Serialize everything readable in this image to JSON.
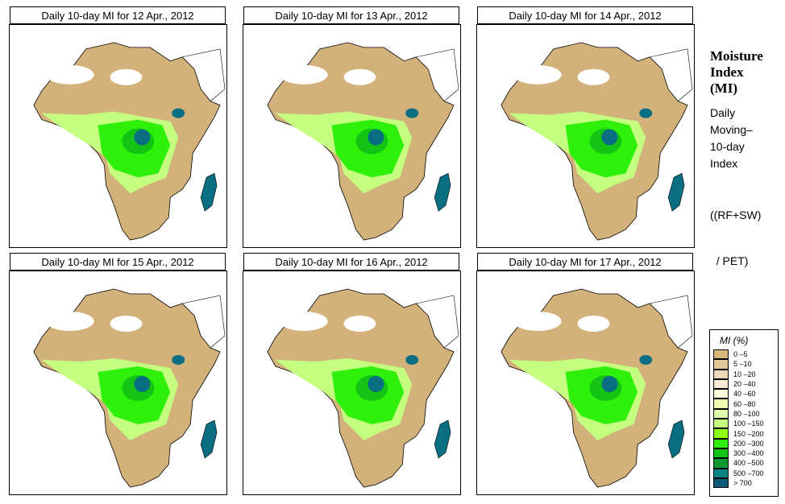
{
  "panels": [
    {
      "title": "Daily 10-day MI for  12 Apr., 2012",
      "date": "12 Apr., 2012"
    },
    {
      "title": "Daily 10-day MI for  13 Apr., 2012",
      "date": "13 Apr., 2012"
    },
    {
      "title": "Daily 10-day MI for  14 Apr., 2012",
      "date": "14 Apr., 2012"
    },
    {
      "title": "Daily 10-day MI for  15 Apr., 2012",
      "date": "15 Apr., 2012"
    },
    {
      "title": "Daily 10-day MI for  16 Apr., 2012",
      "date": "16 Apr., 2012"
    },
    {
      "title": "Daily 10-day MI for  17 Apr., 2012",
      "date": "17 Apr., 2012"
    }
  ],
  "side": {
    "title_lines": [
      "Moisture",
      "Index",
      "(MI)"
    ],
    "desc_lines": [
      "Daily",
      "Moving–",
      "10-day",
      "Index"
    ],
    "formula_lines": [
      "((RF+SW)",
      "  / PET)"
    ]
  },
  "legend": {
    "title": "MI (%)",
    "items": [
      {
        "label": "0 –5",
        "color": "#D8B77A"
      },
      {
        "label": "5 –10",
        "color": "#E3C99A"
      },
      {
        "label": "10 –20",
        "color": "#EFDAB8"
      },
      {
        "label": "20 –40",
        "color": "#F7EBD4"
      },
      {
        "label": "40 –60",
        "color": "#FFFFDD"
      },
      {
        "label": "60 –80",
        "color": "#F0FFB4"
      },
      {
        "label": "80 –100",
        "color": "#DDFFAA"
      },
      {
        "label": "100 –150",
        "color": "#C4FF80"
      },
      {
        "label": "150 –200",
        "color": "#8CFF14"
      },
      {
        "label": "200 –300",
        "color": "#2EF00A"
      },
      {
        "label": "300 –400",
        "color": "#14C414"
      },
      {
        "label": "400 –500",
        "color": "#0C9A32"
      },
      {
        "label": "500 –700",
        "color": "#0A8282"
      },
      {
        "label": "> 700",
        "color": "#0A5A78"
      }
    ]
  },
  "colors": {
    "desert": "#D2B27A",
    "dry_light": "#EEDBB8",
    "bare": "#FFFFFF",
    "wet_light": "#C4FF80",
    "wet": "#2EF00A",
    "wetter": "#14C414",
    "wettest": "#0A6E82"
  }
}
